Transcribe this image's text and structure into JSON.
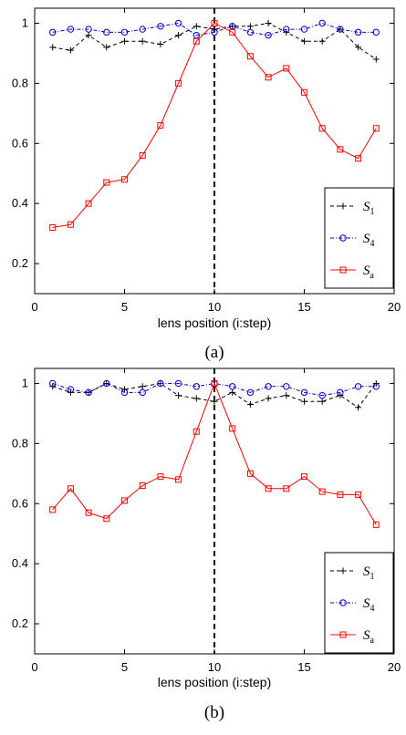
{
  "chart_data": [
    {
      "type": "line",
      "caption": "(a)",
      "xlabel": "lens position (i:step)",
      "ylabel": "",
      "xlim": [
        0,
        20
      ],
      "ylim": [
        0.1,
        1.05
      ],
      "xticks": [
        0,
        5,
        10,
        15,
        20
      ],
      "yticks": [
        0.2,
        0.4,
        0.6,
        0.8,
        1
      ],
      "x": [
        1,
        2,
        3,
        4,
        5,
        6,
        7,
        8,
        9,
        10,
        11,
        12,
        13,
        14,
        15,
        16,
        17,
        18,
        19
      ],
      "vline_x": 10,
      "grid": false,
      "legend_position": "lower-right",
      "series": [
        {
          "name": "S",
          "sub": "1",
          "color": "#000000",
          "marker": "plus",
          "dash": "4,3",
          "values": [
            0.92,
            0.91,
            0.96,
            0.92,
            0.94,
            0.94,
            0.93,
            0.96,
            0.99,
            0.98,
            0.99,
            0.99,
            1.0,
            0.97,
            0.94,
            0.94,
            0.98,
            0.92,
            0.88
          ]
        },
        {
          "name": "S",
          "sub": "4",
          "color": "#0000cc",
          "marker": "circle",
          "dash": "4,2,1,2",
          "values": [
            0.97,
            0.98,
            0.98,
            0.97,
            0.97,
            0.98,
            0.99,
            1.0,
            0.96,
            0.97,
            0.99,
            0.97,
            0.96,
            0.98,
            0.98,
            1.0,
            0.98,
            0.97,
            0.97
          ]
        },
        {
          "name": "S",
          "sub": "a",
          "color": "#ff0000",
          "marker": "square",
          "dash": "",
          "values": [
            0.32,
            0.33,
            0.4,
            0.47,
            0.48,
            0.56,
            0.66,
            0.8,
            0.94,
            1.0,
            0.97,
            0.89,
            0.82,
            0.85,
            0.77,
            0.65,
            0.58,
            0.55,
            0.65
          ]
        }
      ]
    },
    {
      "type": "line",
      "caption": "(b)",
      "xlabel": "lens position (i:step)",
      "ylabel": "",
      "xlim": [
        0,
        20
      ],
      "ylim": [
        0.1,
        1.05
      ],
      "xticks": [
        0,
        5,
        10,
        15,
        20
      ],
      "yticks": [
        0.2,
        0.4,
        0.6,
        0.8,
        1
      ],
      "x": [
        1,
        2,
        3,
        4,
        5,
        6,
        7,
        8,
        9,
        10,
        11,
        12,
        13,
        14,
        15,
        16,
        17,
        18,
        19
      ],
      "vline_x": 10,
      "grid": false,
      "legend_position": "lower-right",
      "series": [
        {
          "name": "S",
          "sub": "1",
          "color": "#000000",
          "marker": "plus",
          "dash": "4,3",
          "values": [
            0.99,
            0.97,
            0.97,
            1.0,
            0.98,
            0.99,
            1.0,
            0.96,
            0.95,
            0.94,
            0.97,
            0.93,
            0.95,
            0.96,
            0.94,
            0.94,
            0.96,
            0.92,
            1.0
          ]
        },
        {
          "name": "S",
          "sub": "4",
          "color": "#0000cc",
          "marker": "circle",
          "dash": "4,2,1,2",
          "values": [
            1.0,
            0.98,
            0.97,
            1.0,
            0.97,
            0.97,
            1.0,
            1.0,
            0.99,
            1.0,
            0.99,
            0.97,
            0.99,
            0.99,
            0.97,
            0.96,
            0.97,
            0.99,
            0.99
          ]
        },
        {
          "name": "S",
          "sub": "a",
          "color": "#ff0000",
          "marker": "square",
          "dash": "",
          "values": [
            0.58,
            0.65,
            0.57,
            0.55,
            0.61,
            0.66,
            0.69,
            0.68,
            0.84,
            1.0,
            0.85,
            0.7,
            0.65,
            0.65,
            0.69,
            0.64,
            0.63,
            0.63,
            0.53
          ]
        }
      ]
    }
  ]
}
